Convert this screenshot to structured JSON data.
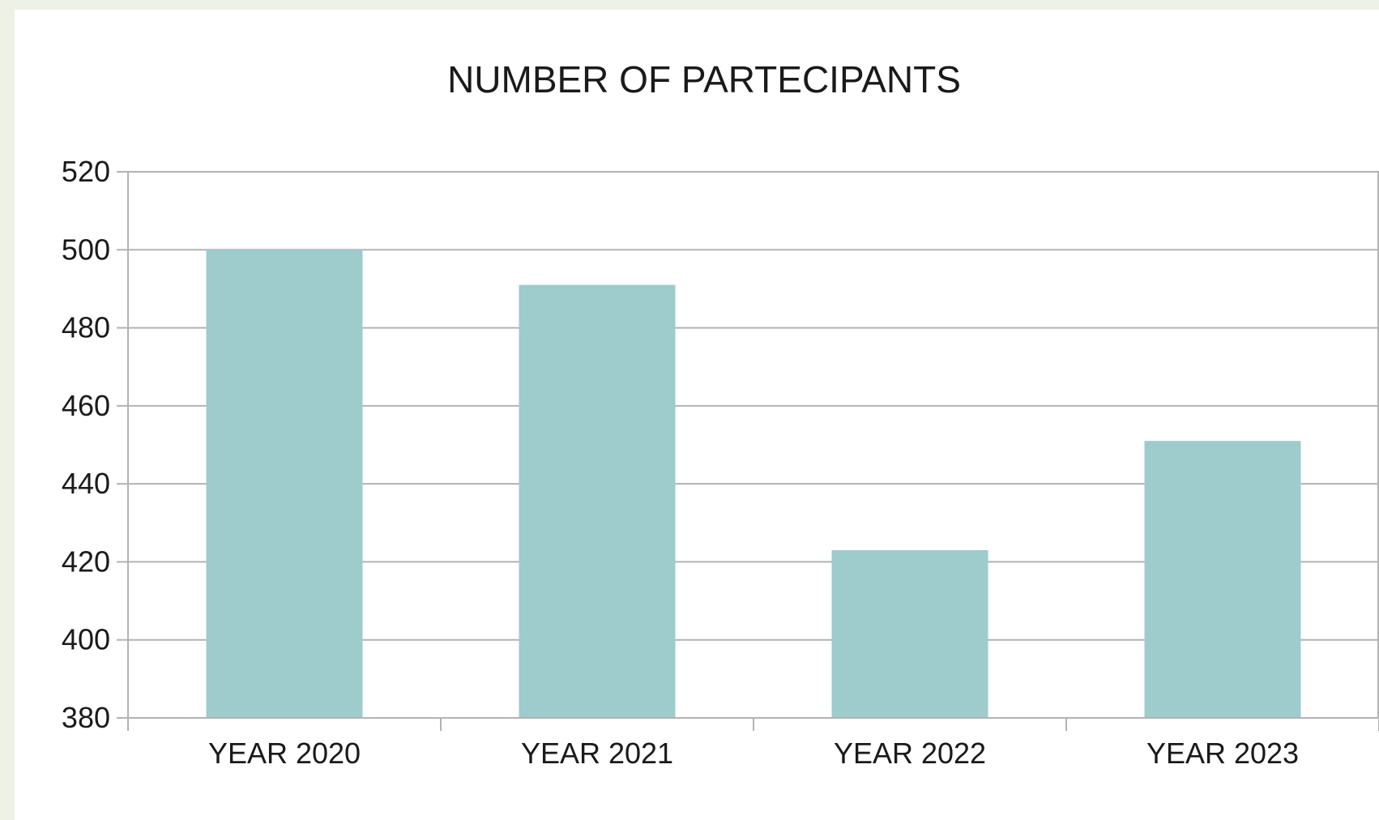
{
  "colors": {
    "background": "#eef1e6",
    "plot_background": "#ffffff",
    "bar": "#9ecbcc",
    "grid": "#b3b3b3",
    "text": "#1a1a1a"
  },
  "chart_data": {
    "type": "bar",
    "title": "NUMBER OF PARTECIPANTS",
    "xlabel": "",
    "ylabel": "",
    "categories": [
      "YEAR 2020",
      "YEAR 2021",
      "YEAR 2022",
      "YEAR 2023"
    ],
    "values": [
      500,
      491,
      423,
      451
    ],
    "ylim": [
      380,
      520
    ],
    "yticks": [
      380,
      400,
      420,
      440,
      460,
      480,
      500,
      520
    ],
    "grid": true,
    "legend": "none"
  }
}
